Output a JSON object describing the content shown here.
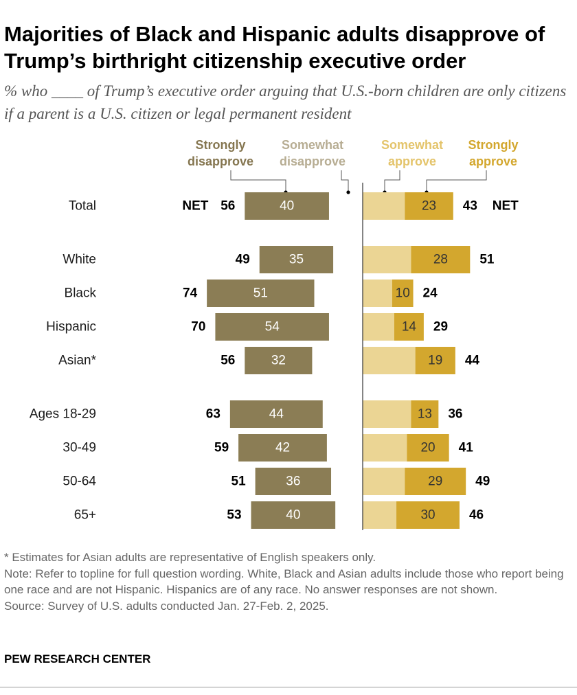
{
  "header": {
    "title": "Majorities of Black and Hispanic adults disapprove of Trump’s birthright citizenship executive order",
    "subtitle": "% who ____ of Trump’s executive order arguing that U.S.-born children are only citizens if a parent is a U.S. citizen or legal permanent resident"
  },
  "colors": {
    "strongly_disapprove": "#8b7d55",
    "somewhat_disapprove": "#c8bfa3",
    "somewhat_approve": "#ebd594",
    "strongly_approve": "#d3a72e",
    "strongly_disapprove_label": "#857650",
    "somewhat_disapprove_label": "#b7ad93",
    "somewhat_approve_label": "#e4c46b",
    "strongly_approve_label": "#d3a72e"
  },
  "chart_data": {
    "type": "diverging-bar",
    "legend": [
      {
        "key": "strongly_disapprove",
        "line1": "Strongly",
        "line2": "disapprove"
      },
      {
        "key": "somewhat_disapprove",
        "line1": "Somewhat",
        "line2": "disapprove"
      },
      {
        "key": "somewhat_approve",
        "line1": "Somewhat",
        "line2": "approve"
      },
      {
        "key": "strongly_approve",
        "line1": "Strongly",
        "line2": "approve"
      }
    ],
    "net_label": "NET",
    "rows": [
      {
        "label": "Total",
        "group": 0,
        "strongly_disapprove": 40,
        "disapprove_net": 56,
        "strongly_approve": 23,
        "approve_net": 43,
        "show_net": true
      },
      {
        "label": "White",
        "group": 1,
        "strongly_disapprove": 35,
        "disapprove_net": 49,
        "strongly_approve": 28,
        "approve_net": 51
      },
      {
        "label": "Black",
        "group": 1,
        "strongly_disapprove": 51,
        "disapprove_net": 74,
        "strongly_approve": 10,
        "approve_net": 24
      },
      {
        "label": "Hispanic",
        "group": 1,
        "strongly_disapprove": 54,
        "disapprove_net": 70,
        "strongly_approve": 14,
        "approve_net": 29
      },
      {
        "label": "Asian*",
        "group": 1,
        "strongly_disapprove": 32,
        "disapprove_net": 56,
        "strongly_approve": 19,
        "approve_net": 44
      },
      {
        "label": "Ages 18-29",
        "group": 2,
        "strongly_disapprove": 44,
        "disapprove_net": 63,
        "strongly_approve": 13,
        "approve_net": 36
      },
      {
        "label": "30-49",
        "group": 2,
        "strongly_disapprove": 42,
        "disapprove_net": 59,
        "strongly_approve": 20,
        "approve_net": 41
      },
      {
        "label": "50-64",
        "group": 2,
        "strongly_disapprove": 36,
        "disapprove_net": 51,
        "strongly_approve": 29,
        "approve_net": 49
      },
      {
        "label": "65+",
        "group": 2,
        "strongly_disapprove": 40,
        "disapprove_net": 53,
        "strongly_approve": 30,
        "approve_net": 46
      }
    ]
  },
  "footer": {
    "asterisk_note": "* Estimates for Asian adults are representative of English speakers only.",
    "note": "Note: Refer to topline for full question wording. White, Black and Asian adults include those who report being one race and are not Hispanic. Hispanics are of any race. No answer responses are not shown.",
    "source": "Source: Survey of U.S. adults conducted Jan. 27-Feb. 2, 2025.",
    "brand": "PEW RESEARCH CENTER"
  }
}
